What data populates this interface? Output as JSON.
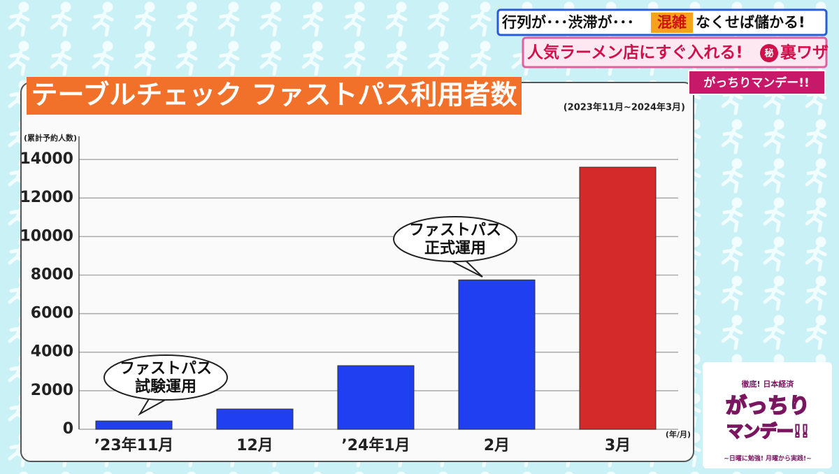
{
  "banner": {
    "line1": [
      "行列が･･･渋滞が･･･",
      "混雑",
      "なくせば儲かる!"
    ],
    "line2": [
      "人気ラーメン店にすぐ入れる!",
      "秘",
      "裏ワザ"
    ],
    "show": "がっちりマンデー!!"
  },
  "logo": {
    "top": "徹底! 日本経済",
    "main": "がっちり",
    "sub": "マンデー!!",
    "tagline": "~日曜に勉強! 月曜から実践!~"
  },
  "chart_data": {
    "type": "bar",
    "title": "テーブルチェック ファストパス利用者数",
    "subtitle": "(2023年11月~2024年3月)",
    "y_label": "(累計予約人数)",
    "x_label": "(年/月)",
    "categories": [
      "’23年11月",
      "12月",
      "’24年1月",
      "2月",
      "3月"
    ],
    "values": [
      430,
      1050,
      3300,
      7750,
      13600
    ],
    "colors": [
      "#1f3ff0",
      "#1f3ff0",
      "#1f3ff0",
      "#1f3ff0",
      "#d42a2a"
    ],
    "ylim": [
      0,
      15200
    ],
    "yticks": [
      0,
      2000,
      4000,
      6000,
      8000,
      10000,
      12000,
      14000
    ],
    "grid": true,
    "annotations": [
      {
        "lines": [
          "ファストパス",
          "試験運用"
        ]
      },
      {
        "lines": [
          "ファストパス",
          "正式運用"
        ]
      }
    ]
  }
}
